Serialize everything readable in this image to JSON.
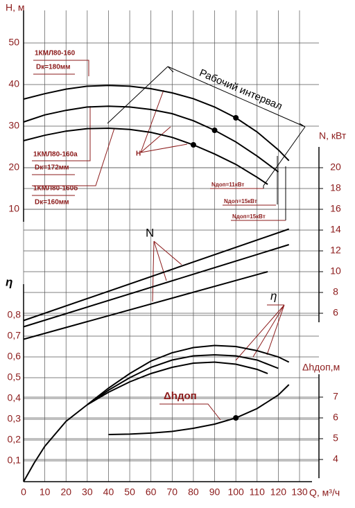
{
  "chart_data": {
    "type": "line",
    "x_label": "Q, м³/ч",
    "y_label": "H, м",
    "y2_label": "N, кВт",
    "y3_label": "η",
    "y4_label": "Δhдоп,м",
    "xlim": [
      0,
      130
    ],
    "xticks": [
      0,
      10,
      20,
      30,
      40,
      50,
      60,
      70,
      80,
      90,
      100,
      110,
      120,
      130
    ],
    "ylim": [
      7,
      55
    ],
    "yticks": [
      10,
      20,
      30,
      40,
      50
    ],
    "y2lim": [
      3,
      22
    ],
    "y2ticks": [
      6,
      8,
      10,
      12,
      14,
      16,
      18,
      20
    ],
    "y3lim": [
      0,
      0.95
    ],
    "y3ticks": [
      {
        "value": 0.1,
        "label": "0,1"
      },
      {
        "value": 0.2,
        "label": "0,2"
      },
      {
        "value": 0.3,
        "label": "0,3"
      },
      {
        "value": 0.4,
        "label": "0,4"
      },
      {
        "value": 0.5,
        "label": "0,5"
      },
      {
        "value": 0.6,
        "label": "0,6"
      },
      {
        "value": 0.7,
        "label": "0,7"
      },
      {
        "value": 0.8,
        "label": "0,8"
      }
    ],
    "y4lim": [
      3.5,
      8.3
    ],
    "y4ticks": [
      4,
      5,
      6,
      7
    ],
    "grid": true,
    "series": [
      {
        "axis": "y",
        "color": "#000000",
        "marker_x": 100,
        "x": [
          0,
          10,
          20,
          30,
          40,
          50,
          60,
          70,
          80,
          90,
          100,
          110,
          120,
          125
        ],
        "values": [
          36.5,
          37.8,
          38.9,
          39.6,
          39.8,
          39.6,
          39,
          38,
          36.6,
          34.6,
          32,
          28.6,
          24.3,
          21.7
        ]
      },
      {
        "axis": "y",
        "color": "#000000",
        "marker_x": 90,
        "x": [
          0,
          10,
          20,
          30,
          40,
          50,
          60,
          70,
          80,
          90,
          100,
          110,
          120
        ],
        "values": [
          31,
          32.7,
          33.8,
          34.6,
          34.8,
          34.6,
          34,
          33,
          31.3,
          29,
          26.2,
          22.8,
          19
        ]
      },
      {
        "axis": "y",
        "color": "#000000",
        "marker_x": 80,
        "x": [
          0,
          10,
          20,
          30,
          40,
          50,
          60,
          70,
          80,
          90,
          100,
          110,
          115
        ],
        "values": [
          26.5,
          27.8,
          28.8,
          29.4,
          29.5,
          29.2,
          28.5,
          27.3,
          25.5,
          23.3,
          20.8,
          17.7,
          16
        ]
      },
      {
        "axis": "y2",
        "color": "#000000",
        "x": [
          0,
          125
        ],
        "values": [
          5.3,
          14.1
        ]
      },
      {
        "axis": "y2",
        "color": "#000000",
        "x": [
          0,
          125
        ],
        "values": [
          4.7,
          12.6
        ]
      },
      {
        "axis": "y2",
        "color": "#000000",
        "x": [
          0,
          115
        ],
        "values": [
          3.5,
          10
        ]
      },
      {
        "axis": "y3",
        "color": "#000000",
        "x": [
          0,
          5,
          10,
          20,
          30,
          40,
          50,
          60,
          70,
          80,
          90,
          100,
          110,
          120,
          125
        ],
        "values": [
          0,
          0.09,
          0.17,
          0.29,
          0.37,
          0.45,
          0.52,
          0.58,
          0.62,
          0.645,
          0.655,
          0.65,
          0.63,
          0.6,
          0.575
        ]
      },
      {
        "axis": "y3",
        "color": "#000000",
        "x": [
          30,
          40,
          50,
          60,
          70,
          80,
          90,
          100,
          110,
          120
        ],
        "values": [
          0.37,
          0.44,
          0.5,
          0.55,
          0.585,
          0.605,
          0.61,
          0.605,
          0.585,
          0.545
        ]
      },
      {
        "axis": "y3",
        "color": "#000000",
        "x": [
          30,
          40,
          50,
          60,
          70,
          80,
          90,
          100,
          110,
          115
        ],
        "values": [
          0.37,
          0.43,
          0.48,
          0.52,
          0.55,
          0.57,
          0.575,
          0.565,
          0.54,
          0.52
        ]
      },
      {
        "axis": "y4",
        "color": "#000000",
        "marker_x": 100,
        "x": [
          40,
          50,
          60,
          70,
          80,
          90,
          100,
          110,
          120,
          125
        ],
        "values": [
          5.2,
          5.22,
          5.27,
          5.35,
          5.5,
          5.7,
          6,
          6.45,
          7.1,
          7.6
        ]
      }
    ],
    "annotations": [
      "1КМЛ80-160",
      "Dк=180мм",
      "1КМЛ80-160а",
      "Dк=172мм",
      "1КМЛ80-160б",
      "Dк=160мм",
      "Рабочий интервал",
      "Н",
      "Nдоп=11кВт",
      "Nдоп=15кВт",
      "Nдоп=15кВт",
      "N",
      "η",
      "Δhдоп"
    ]
  }
}
